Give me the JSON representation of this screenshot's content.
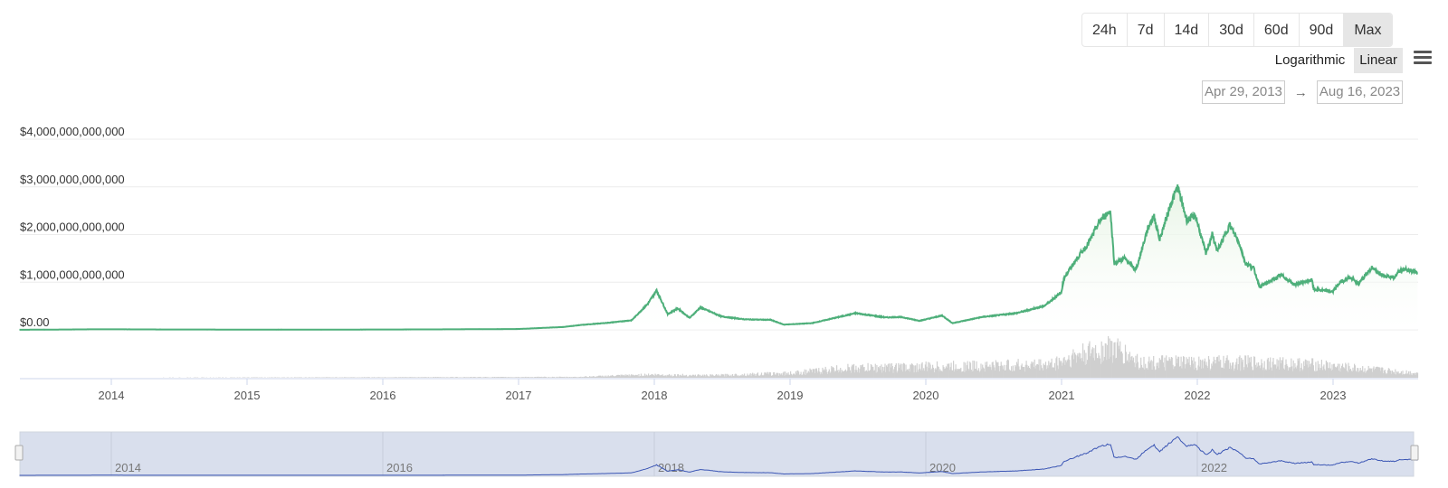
{
  "controls": {
    "ranges": [
      "24h",
      "7d",
      "14d",
      "30d",
      "60d",
      "90d",
      "Max"
    ],
    "active_range": "Max",
    "scales": [
      "Logarithmic",
      "Linear"
    ],
    "active_scale": "Linear",
    "menu_icon": "hamburger-menu-icon",
    "date_from": "Apr 29, 2013",
    "date_arrow": "→",
    "date_to": "Aug 16, 2023"
  },
  "chart_data": {
    "type": "area",
    "title": "",
    "xlabel": "",
    "ylabel": "",
    "ylim": [
      0,
      4000000000000
    ],
    "y_ticks": [
      0,
      1000000000000,
      2000000000000,
      3000000000000,
      4000000000000
    ],
    "y_tick_labels": [
      "$0.00",
      "$1,000,000,000,000",
      "$2,000,000,000,000",
      "$3,000,000,000,000",
      "$4,000,000,000,000"
    ],
    "x_tick_labels": [
      "2014",
      "2015",
      "2016",
      "2017",
      "2018",
      "2019",
      "2020",
      "2021",
      "2022",
      "2023"
    ],
    "xlim": [
      "2013-04-29",
      "2023-08-16"
    ],
    "grid": true,
    "line_color": "#4eaf7a",
    "fill_color": "#e6f4e4",
    "volume_color": "#cfcfcf",
    "navigator_line_color": "#3a55b4",
    "navigator_fill_color": "#d9dfed",
    "navigator_labels": [
      "2014",
      "2016",
      "2018",
      "2020",
      "2022"
    ],
    "series": [
      [
        "2013-04-29",
        1500000000.0
      ],
      [
        "2013-12-01",
        12000000000.0
      ],
      [
        "2014-06-01",
        8000000000.0
      ],
      [
        "2015-06-01",
        4000000000.0
      ],
      [
        "2016-06-01",
        10000000000.0
      ],
      [
        "2017-01-01",
        18000000000.0
      ],
      [
        "2017-05-01",
        60000000000.0
      ],
      [
        "2017-06-15",
        100000000000.0
      ],
      [
        "2017-09-01",
        150000000000.0
      ],
      [
        "2017-11-01",
        200000000000.0
      ],
      [
        "2017-12-15",
        550000000000.0
      ],
      [
        "2018-01-07",
        830000000000.0
      ],
      [
        "2018-02-06",
        330000000000.0
      ],
      [
        "2018-03-05",
        450000000000.0
      ],
      [
        "2018-04-06",
        250000000000.0
      ],
      [
        "2018-05-05",
        470000000000.0
      ],
      [
        "2018-07-01",
        280000000000.0
      ],
      [
        "2018-09-01",
        220000000000.0
      ],
      [
        "2018-11-10",
        210000000000.0
      ],
      [
        "2018-12-15",
        110000000000.0
      ],
      [
        "2019-03-01",
        140000000000.0
      ],
      [
        "2019-06-26",
        350000000000.0
      ],
      [
        "2019-09-15",
        260000000000.0
      ],
      [
        "2019-10-26",
        270000000000.0
      ],
      [
        "2019-12-15",
        190000000000.0
      ],
      [
        "2020-02-14",
        300000000000.0
      ],
      [
        "2020-03-13",
        140000000000.0
      ],
      [
        "2020-06-01",
        270000000000.0
      ],
      [
        "2020-09-01",
        350000000000.0
      ],
      [
        "2020-11-15",
        500000000000.0
      ],
      [
        "2020-12-31",
        780000000000.0
      ],
      [
        "2021-01-08",
        1100000000000.0
      ],
      [
        "2021-02-21",
        1600000000000.0
      ],
      [
        "2021-03-13",
        1800000000000.0
      ],
      [
        "2021-04-15",
        2300000000000.0
      ],
      [
        "2021-05-12",
        2500000000000.0
      ],
      [
        "2021-05-23",
        1400000000000.0
      ],
      [
        "2021-06-20",
        1500000000000.0
      ],
      [
        "2021-07-20",
        1250000000000.0
      ],
      [
        "2021-08-20",
        2100000000000.0
      ],
      [
        "2021-09-06",
        2400000000000.0
      ],
      [
        "2021-09-22",
        1900000000000.0
      ],
      [
        "2021-10-20",
        2600000000000.0
      ],
      [
        "2021-11-09",
        3000000000000.0
      ],
      [
        "2021-12-04",
        2300000000000.0
      ],
      [
        "2021-12-27",
        2400000000000.0
      ],
      [
        "2022-01-24",
        1600000000000.0
      ],
      [
        "2022-02-10",
        2000000000000.0
      ],
      [
        "2022-02-24",
        1650000000000.0
      ],
      [
        "2022-03-29",
        2200000000000.0
      ],
      [
        "2022-04-25",
        1800000000000.0
      ],
      [
        "2022-05-10",
        1400000000000.0
      ],
      [
        "2022-06-01",
        1300000000000.0
      ],
      [
        "2022-06-18",
        900000000000.0
      ],
      [
        "2022-08-14",
        1150000000000.0
      ],
      [
        "2022-09-20",
        950000000000.0
      ],
      [
        "2022-11-05",
        1050000000000.0
      ],
      [
        "2022-11-10",
        850000000000.0
      ],
      [
        "2022-12-31",
        800000000000.0
      ],
      [
        "2023-01-20",
        1000000000000.0
      ],
      [
        "2023-02-15",
        1100000000000.0
      ],
      [
        "2023-03-10",
        970000000000.0
      ],
      [
        "2023-04-14",
        1300000000000.0
      ],
      [
        "2023-05-15",
        1150000000000.0
      ],
      [
        "2023-06-15",
        1100000000000.0
      ],
      [
        "2023-06-30",
        1250000000000.0
      ],
      [
        "2023-07-15",
        1270000000000.0
      ],
      [
        "2023-08-16",
        1200000000000.0
      ]
    ],
    "volume_relative": [
      [
        "2013-04-29",
        0
      ],
      [
        "2017-06-01",
        0.02
      ],
      [
        "2017-12-15",
        0.08
      ],
      [
        "2018-06-01",
        0.06
      ],
      [
        "2019-01-01",
        0.12
      ],
      [
        "2019-06-01",
        0.25
      ],
      [
        "2020-03-01",
        0.3
      ],
      [
        "2020-12-01",
        0.35
      ],
      [
        "2021-02-01",
        0.55
      ],
      [
        "2021-05-15",
        0.8
      ],
      [
        "2021-08-01",
        0.4
      ],
      [
        "2021-11-01",
        0.4
      ],
      [
        "2022-06-01",
        0.4
      ],
      [
        "2022-11-10",
        0.35
      ],
      [
        "2023-03-01",
        0.25
      ],
      [
        "2023-08-16",
        0.12
      ]
    ]
  }
}
